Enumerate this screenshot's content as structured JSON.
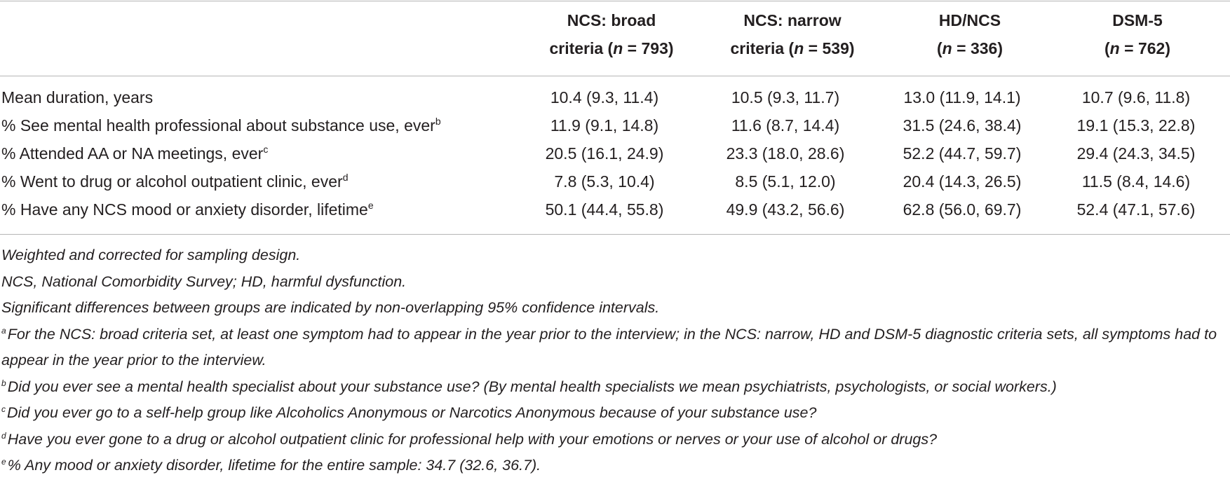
{
  "columns": [
    {
      "line1": "NCS: broad",
      "line2_pre": "criteria (",
      "n_label": "n",
      "line2_post": " = 793)"
    },
    {
      "line1": "NCS: narrow",
      "line2_pre": "criteria (",
      "n_label": "n",
      "line2_post": " = 539)"
    },
    {
      "line1": "HD/NCS",
      "line2_pre": "(",
      "n_label": "n",
      "line2_post": " = 336)"
    },
    {
      "line1": "DSM-5",
      "line2_pre": "(",
      "n_label": "n",
      "line2_post": " = 762)"
    }
  ],
  "rows": [
    {
      "label": "Mean duration, years",
      "sup": "",
      "values": [
        "10.4 (9.3, 11.4)",
        "10.5 (9.3, 11.7)",
        "13.0 (11.9, 14.1)",
        "10.7 (9.6, 11.8)"
      ]
    },
    {
      "label": "% See mental health professional about substance use, ever",
      "sup": "b",
      "values": [
        "11.9 (9.1, 14.8)",
        "11.6 (8.7, 14.4)",
        "31.5 (24.6, 38.4)",
        "19.1 (15.3, 22.8)"
      ]
    },
    {
      "label": "% Attended AA or NA meetings, ever",
      "sup": "c",
      "values": [
        "20.5 (16.1, 24.9)",
        "23.3 (18.0, 28.6)",
        "52.2 (44.7, 59.7)",
        "29.4 (24.3, 34.5)"
      ]
    },
    {
      "label": "% Went to drug or alcohol outpatient clinic, ever",
      "sup": "d",
      "values": [
        "7.8 (5.3, 10.4)",
        "8.5 (5.1, 12.0)",
        "20.4 (14.3, 26.5)",
        "11.5 (8.4, 14.6)"
      ]
    },
    {
      "label": "% Have any NCS mood or anxiety disorder, lifetime",
      "sup": "e",
      "values": [
        "50.1 (44.4, 55.8)",
        "49.9 (43.2, 56.6)",
        "62.8 (56.0, 69.7)",
        "52.4 (47.1, 57.6)"
      ]
    }
  ],
  "notes": {
    "weighted": "Weighted and corrected for sampling design.",
    "abbrev": "NCS, National Comorbidity Survey; HD, harmful dysfunction.",
    "significance": "Significant differences between groups are indicated by non-overlapping 95% confidence intervals.",
    "footnotes": [
      {
        "mark": "a",
        "text": "For the NCS: broad criteria set, at least one symptom had to appear in the year prior to the interview; in the NCS: narrow, HD and DSM-5 diagnostic criteria sets, all symptoms had to appear in the year prior to the interview."
      },
      {
        "mark": "b",
        "text": "Did you ever see a mental health specialist about your substance use? (By mental health specialists we mean psychiatrists, psychologists, or social workers.)"
      },
      {
        "mark": "c",
        "text": "Did you ever go to a self-help group like Alcoholics Anonymous or Narcotics Anonymous because of your substance use?"
      },
      {
        "mark": "d",
        "text": "Have you ever gone to a drug or alcohol outpatient clinic for professional help with your emotions or nerves or your use of alcohol or drugs?"
      },
      {
        "mark": "e",
        "text": "% Any mood or anxiety disorder, lifetime for the entire sample: 34.7 (32.6, 36.7)."
      }
    ]
  }
}
